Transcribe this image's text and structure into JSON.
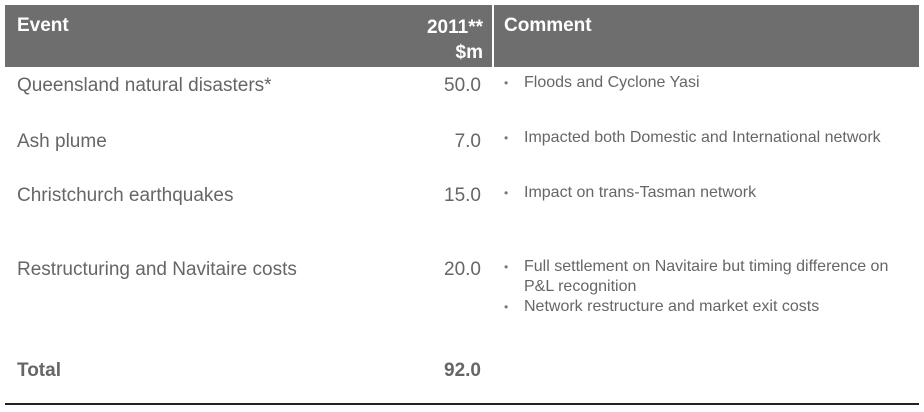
{
  "header": {
    "event": "Event",
    "amount_line1": "2011**",
    "amount_line2": "$m",
    "comment": "Comment"
  },
  "rows": [
    {
      "event": "Queensland natural disasters*",
      "amount": "50.0",
      "comments": [
        "Floods and Cyclone Yasi"
      ]
    },
    {
      "event": "Ash plume",
      "amount": "7.0",
      "comments": [
        "Impacted both Domestic and International network"
      ]
    },
    {
      "event": "Christchurch earthquakes",
      "amount": "15.0",
      "comments": [
        "Impact on trans-Tasman network"
      ]
    },
    {
      "event": "Restructuring and Navitaire costs",
      "amount": "20.0",
      "comments": [
        "Full settlement on Navitaire but timing difference on P&L recognition",
        "Network restructure and market exit costs"
      ]
    }
  ],
  "total": {
    "event": "Total",
    "amount": "92.0"
  },
  "bullet": "•"
}
